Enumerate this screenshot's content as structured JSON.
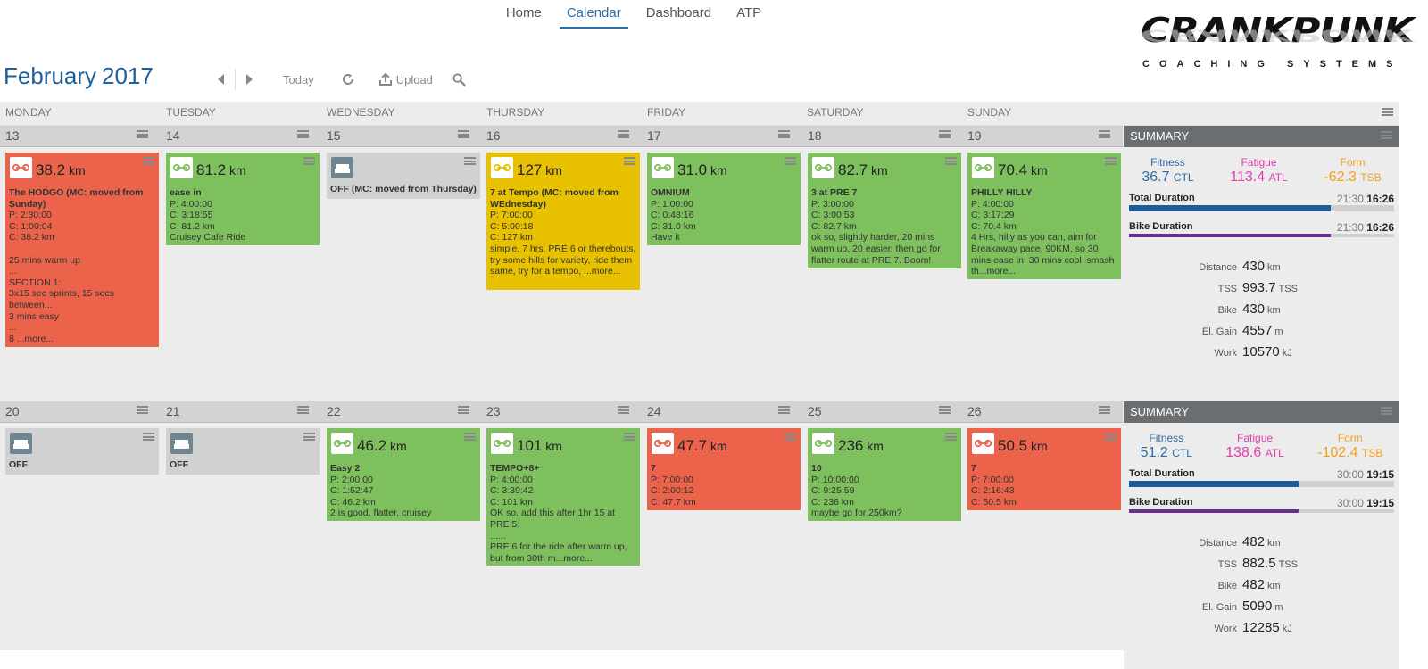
{
  "nav": {
    "items": [
      "Home",
      "Calendar",
      "Dashboard",
      "ATP"
    ],
    "active": 1
  },
  "logo": {
    "line1": "CRANKPUNK",
    "line2": "COACHING SYSTEMS"
  },
  "header": {
    "month": "February",
    "year": "2017"
  },
  "toolbar": {
    "today": "Today",
    "upload": "Upload"
  },
  "days": [
    "MONDAY",
    "TUESDAY",
    "WEDNESDAY",
    "THURSDAY",
    "FRIDAY",
    "SATURDAY",
    "SUNDAY"
  ],
  "summary_label": "SUMMARY",
  "week1": {
    "dates": [
      "13",
      "14",
      "15",
      "16",
      "17",
      "18",
      "19"
    ],
    "cards": [
      {
        "km": "38.2",
        "unit": "km",
        "title": "The HODGO (MC: moved from Sunday)",
        "text": "P: 2:30:00\nC: 1:00:04\nC: 38.2 km\n\n25 mins warm up\n...\nSECTION 1:\n3x15 sec sprints, 15 secs between...\n3 mins easy\n...\n8 ...more...",
        "color": "#ec634b",
        "icon": "bike-icon"
      },
      {
        "km": "81.2",
        "unit": "km",
        "title": "ease in",
        "text": "P: 4:00:00\nC: 3:18:55\nC: 81.2 km\nCruisey Cafe Ride",
        "color": "#7dc05d",
        "icon": "bike-icon"
      },
      {
        "km": "",
        "unit": "",
        "title": "OFF (MC: moved from Thursday)",
        "text": "",
        "color": "#d1d1d1",
        "icon": "couch-icon"
      },
      {
        "km": "127",
        "unit": "km",
        "title": "7 at Tempo (MC: moved from WEdnesday)",
        "text": "P: 7:00:00\nC: 5:00:18\nC: 127 km\nsimple, 7 hrs, PRE 6 or therebouts, try some hills for variety, ride them same, try for a tempo, ...more...",
        "color": "#e8c200",
        "icon": "bike-icon"
      },
      {
        "km": "31.0",
        "unit": "km",
        "title": "OMNIUM",
        "text": "P: 1:00:00\nC: 0:48:16\nC: 31.0 km\nHave it",
        "color": "#7dc05d",
        "icon": "bike-icon"
      },
      {
        "km": "82.7",
        "unit": "km",
        "title": "3 at PRE 7",
        "text": "P: 3:00:00\nC: 3:00:53\nC: 82.7 km\nok so, slightly harder, 20 mins warm up, 20 easier, then go for flatter route at PRE 7. Boom!",
        "color": "#7dc05d",
        "icon": "bike-icon"
      },
      {
        "km": "70.4",
        "unit": "km",
        "title": "PHILLY HILLY",
        "text": "P: 4:00:00\nC: 3:17:29\nC: 70.4 km\n4 Hrs, hilly as you can, aim for Breakaway pace, 90KM, so 30 mins ease in, 30 mins cool, smash th...more...",
        "color": "#7dc05d",
        "icon": "bike-icon"
      }
    ],
    "summary": {
      "fitness_label": "Fitness",
      "fitness": "36.7",
      "fitness_unit": "CTL",
      "fatigue_label": "Fatigue",
      "fatigue": "113.4",
      "fatigue_unit": "ATL",
      "form_label": "Form",
      "form": "-62.3",
      "form_unit": "TSB",
      "total_label": "Total Duration",
      "total_planned": "21:30",
      "total_done": "16:26",
      "total_pct": 0.76,
      "bike_label": "Bike Duration",
      "bike_planned": "21:30",
      "bike_done": "16:26",
      "bike_pct": 0.76,
      "stats": [
        [
          "Distance",
          "430",
          "km"
        ],
        [
          "TSS",
          "993.7",
          "TSS"
        ],
        [
          "Bike",
          "430",
          "km"
        ],
        [
          "El. Gain",
          "4557",
          "m"
        ],
        [
          "Work",
          "10570",
          "kJ"
        ]
      ]
    }
  },
  "week2": {
    "dates": [
      "20",
      "21",
      "22",
      "23",
      "24",
      "25",
      "26"
    ],
    "cards": [
      {
        "km": "",
        "unit": "",
        "title": "OFF",
        "text": "",
        "color": "#d1d1d1",
        "icon": "couch-icon"
      },
      {
        "km": "",
        "unit": "",
        "title": "OFF",
        "text": "",
        "color": "#d1d1d1",
        "icon": "couch-icon"
      },
      {
        "km": "46.2",
        "unit": "km",
        "title": "Easy 2",
        "text": "P: 2:00:00\nC: 1:52:47\nC: 46.2 km\n2 is good, flatter, cruisey",
        "color": "#7dc05d",
        "icon": "bike-icon"
      },
      {
        "km": "101",
        "unit": "km",
        "title": "TEMPO+8+",
        "text": "P: 4:00:00\nC: 3:39:42\nC: 101 km\nOK so, add this after 1hr 15 at PRE 5:\n......\nPRE 6 for the ride after warm up, but from 30th m...more...",
        "color": "#7dc05d",
        "icon": "bike-icon"
      },
      {
        "km": "47.7",
        "unit": "km",
        "title": "7",
        "text": "P: 7:00:00\nC: 2:00:12\nC: 47.7 km",
        "color": "#ec634b",
        "icon": "bike-icon"
      },
      {
        "km": "236",
        "unit": "km",
        "title": "10",
        "text": "P: 10:00:00\nC: 9:25:59\nC: 236 km\nmaybe go for 250km?",
        "color": "#7dc05d",
        "icon": "bike-icon"
      },
      {
        "km": "50.5",
        "unit": "km",
        "title": "7",
        "text": "P: 7:00:00\nC: 2:16:43\nC: 50.5 km",
        "color": "#ec634b",
        "icon": "bike-icon"
      }
    ],
    "summary": {
      "fitness_label": "Fitness",
      "fitness": "51.2",
      "fitness_unit": "CTL",
      "fatigue_label": "Fatigue",
      "fatigue": "138.6",
      "fatigue_unit": "ATL",
      "form_label": "Form",
      "form": "-102.4",
      "form_unit": "TSB",
      "total_label": "Total Duration",
      "total_planned": "30:00",
      "total_done": "19:15",
      "total_pct": 0.64,
      "bike_label": "Bike Duration",
      "bike_planned": "30:00",
      "bike_done": "19:15",
      "bike_pct": 0.64,
      "stats": [
        [
          "Distance",
          "482",
          "km"
        ],
        [
          "TSS",
          "882.5",
          "TSS"
        ],
        [
          "Bike",
          "482",
          "km"
        ],
        [
          "El. Gain",
          "5090",
          "m"
        ],
        [
          "Work",
          "12285",
          "kJ"
        ]
      ]
    }
  },
  "colors": {
    "bar_total": "#1f5b96",
    "bar_bike": "#6a2c91"
  }
}
